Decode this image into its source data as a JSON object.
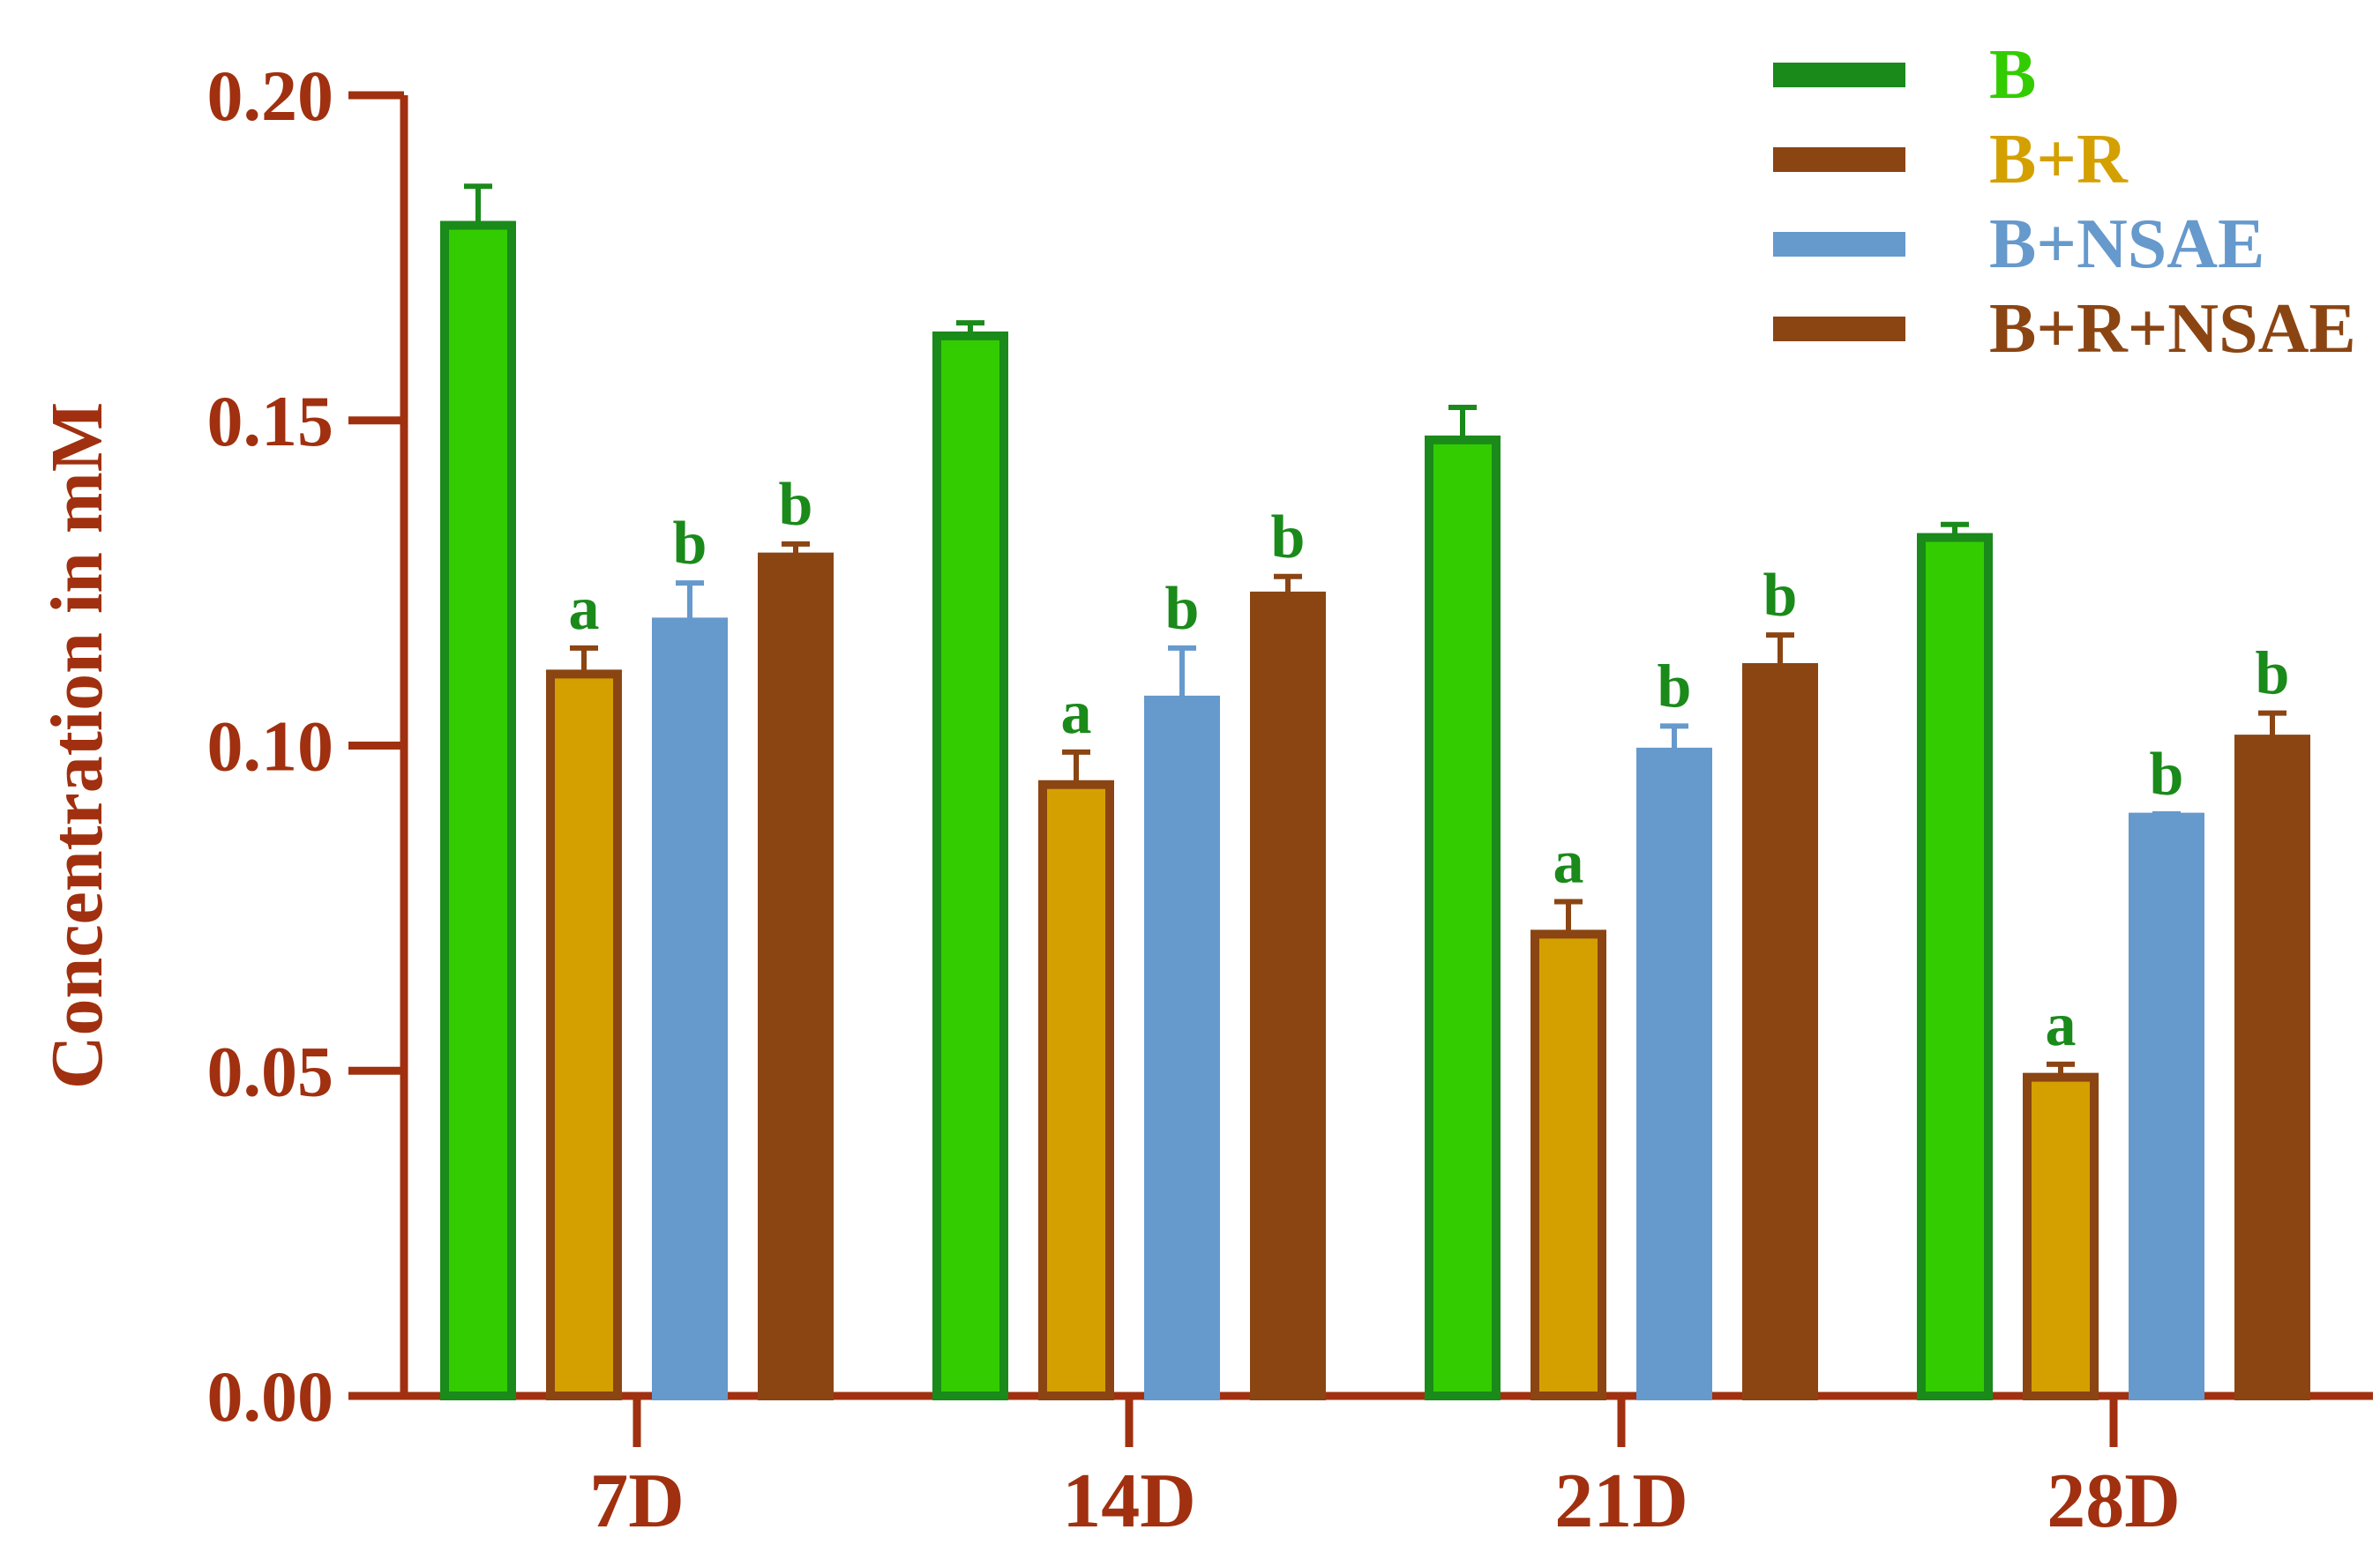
{
  "chart_data": {
    "type": "bar",
    "title": "",
    "xlabel": "",
    "ylabel": "Concentration in mM",
    "ylim": [
      0,
      0.2
    ],
    "yticks": [
      "0.00",
      "0.05",
      "0.10",
      "0.15",
      "0.20"
    ],
    "categories": [
      "7D",
      "14D",
      "21D",
      "28D"
    ],
    "grid": false,
    "legend_position": "top-right",
    "axis_color": "#a0300f",
    "series": [
      {
        "name": "B",
        "fill": "#33cc00",
        "edge": "#1a8a1a",
        "legend_text_color": "#33cc00",
        "values": [
          0.18,
          0.163,
          0.147,
          0.132
        ],
        "errors": [
          0.006,
          0.002,
          0.005,
          0.002
        ],
        "sig": [
          "",
          "",
          "",
          ""
        ],
        "sig_color": "#1a8a1a"
      },
      {
        "name": "B+R",
        "fill": "#d4a000",
        "edge": "#8b4513",
        "legend_text_color": "#d4a000",
        "values": [
          0.111,
          0.094,
          0.071,
          0.049
        ],
        "errors": [
          0.004,
          0.005,
          0.005,
          0.002
        ],
        "sig": [
          "a",
          "a",
          "a",
          "a"
        ],
        "sig_color": "#1a8a1a"
      },
      {
        "name": "B+NSAE",
        "fill": "#6699cc",
        "edge": "#6699cc",
        "legend_text_color": "#6699cc",
        "values": [
          0.119,
          0.107,
          0.099,
          0.089
        ],
        "errors": [
          0.006,
          0.008,
          0.004,
          0.0005
        ],
        "sig": [
          "b",
          "b",
          "b",
          "b"
        ],
        "sig_color": "#1a8a1a"
      },
      {
        "name": "B+R+NSAE",
        "fill": "#8b4513",
        "edge": "#8b4513",
        "legend_text_color": "#8b4513",
        "values": [
          0.129,
          0.123,
          0.112,
          0.101
        ],
        "errors": [
          0.002,
          0.003,
          0.005,
          0.004
        ],
        "sig": [
          "b",
          "b",
          "b",
          "b"
        ],
        "sig_color": "#1a8a1a"
      }
    ]
  }
}
